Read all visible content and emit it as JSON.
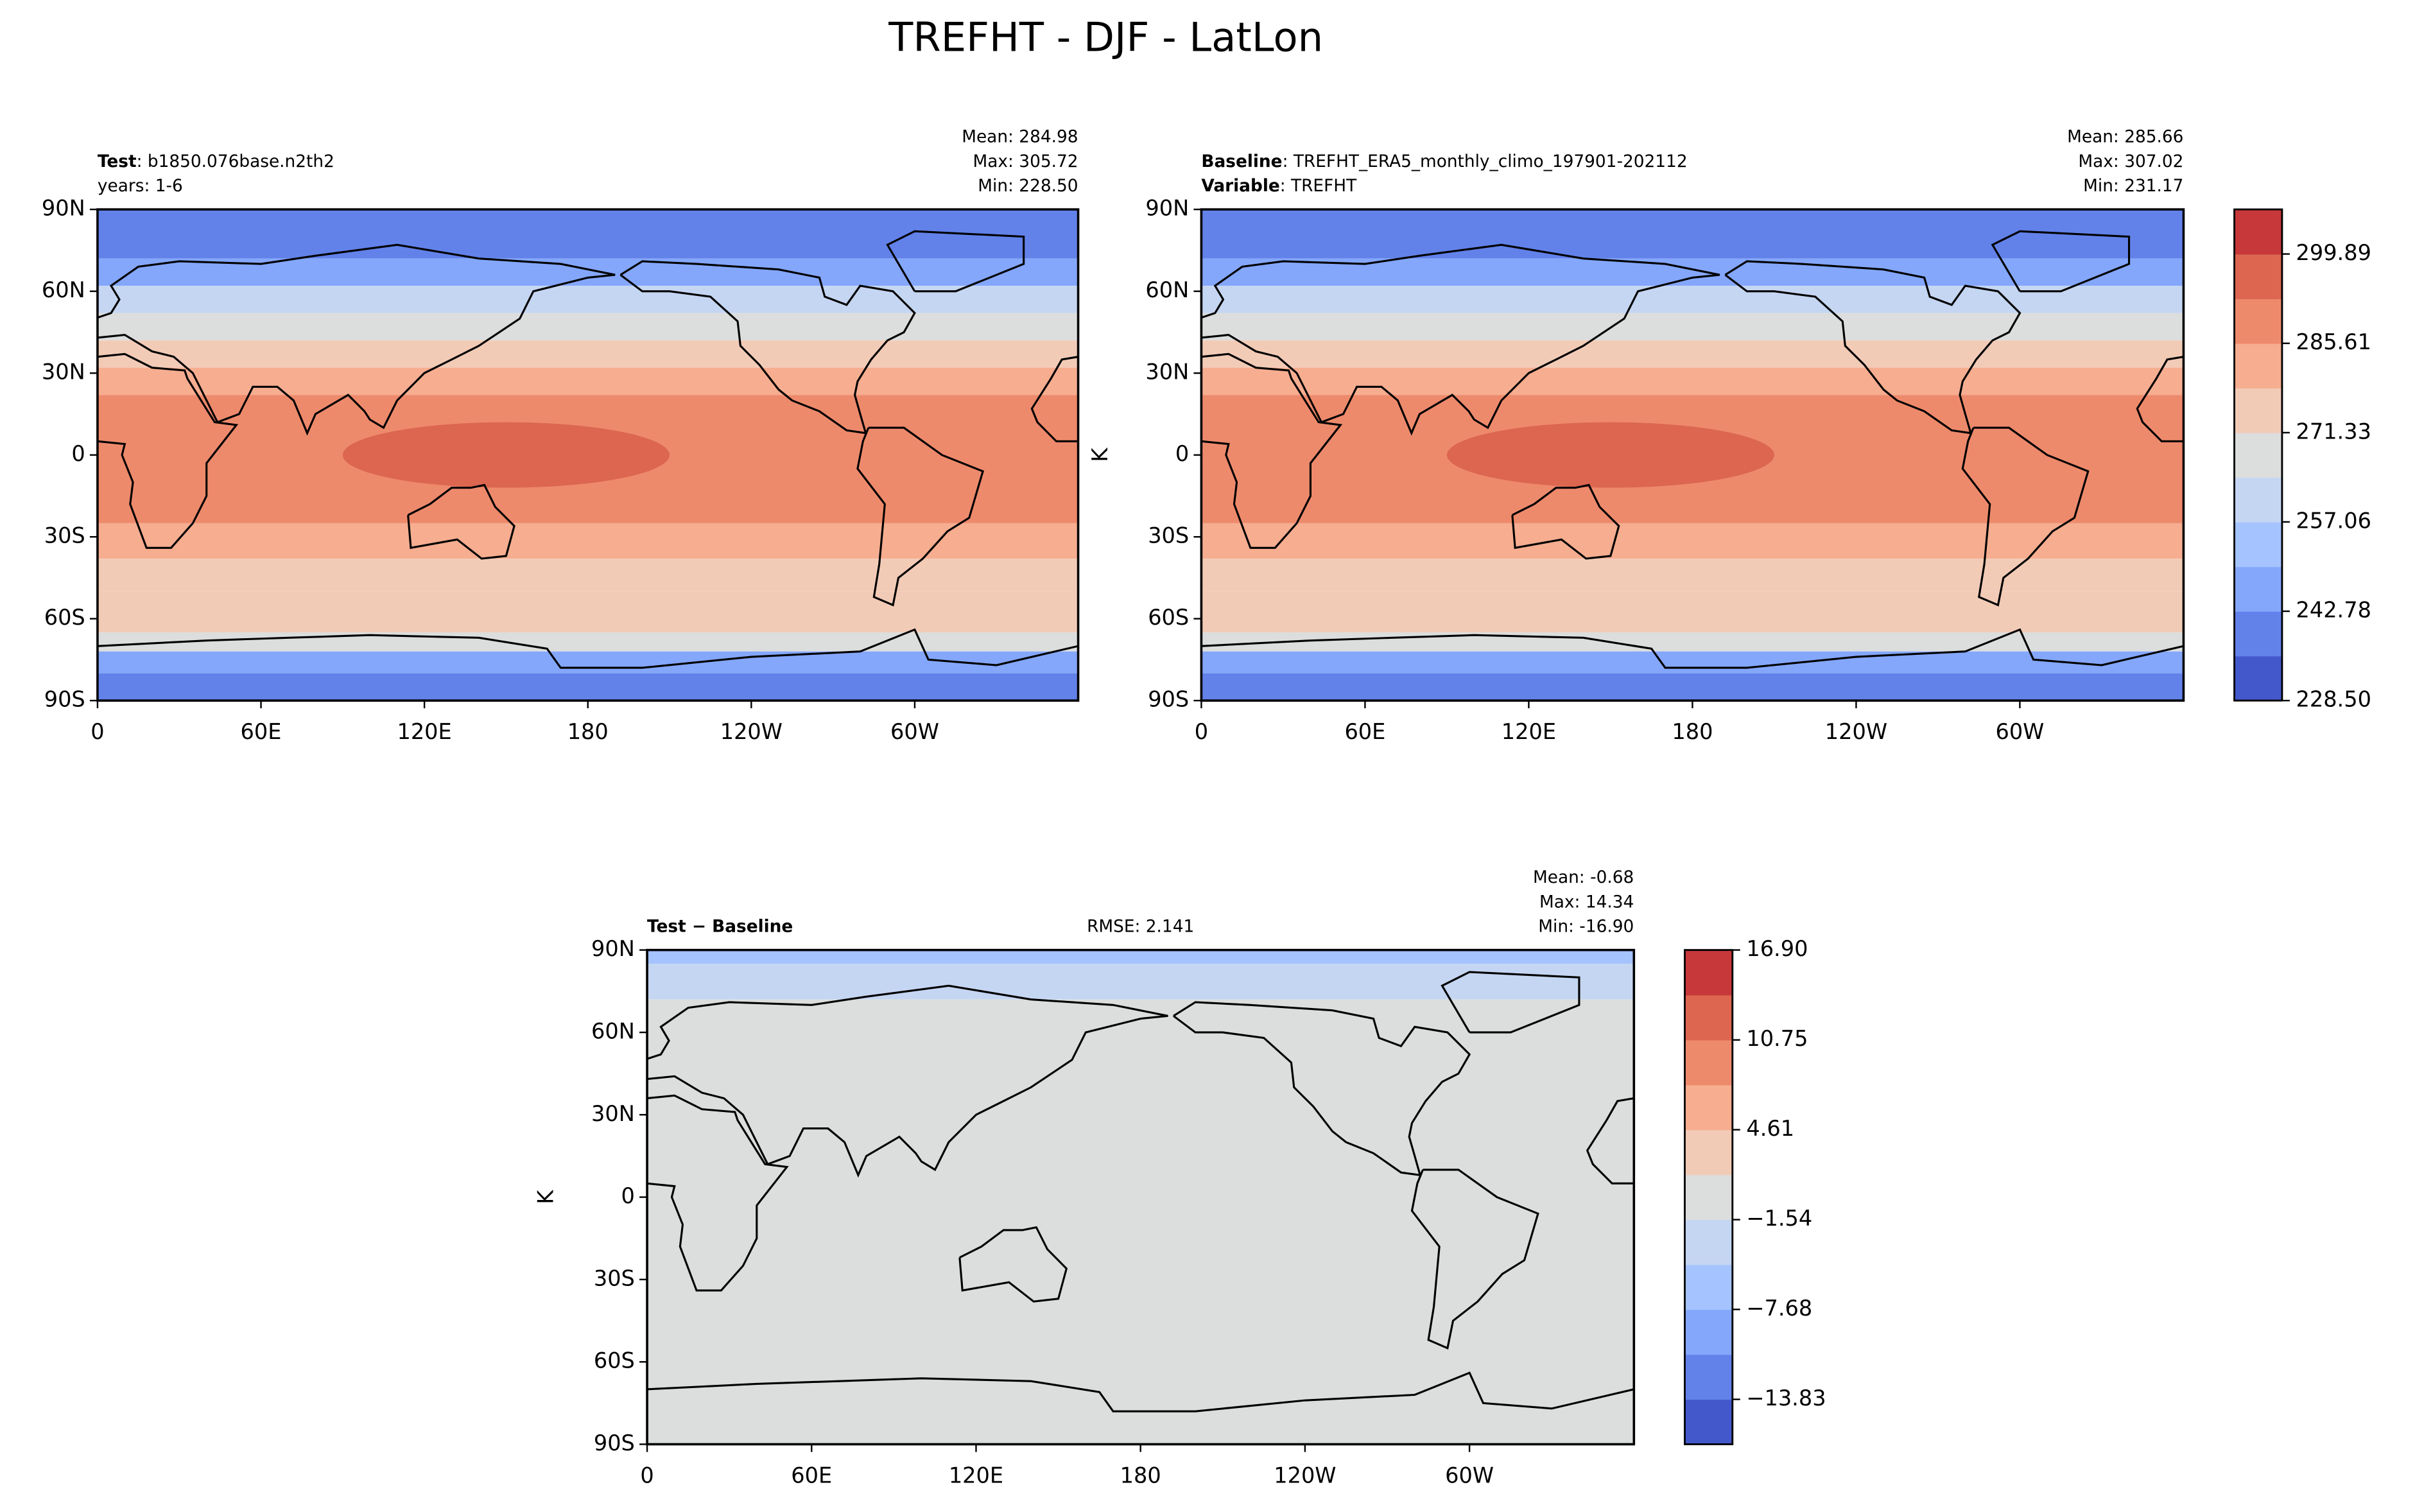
{
  "title": "TREFHT - DJF - LatLon",
  "chart_data": [
    {
      "type": "contour",
      "left_lines": [
        {
          "bold": "Test",
          "text": ": b1850.076base.n2th2"
        },
        {
          "text": "years: 1-6"
        }
      ],
      "stats": {
        "names": [
          "Mean:",
          "Max:",
          "Min:"
        ],
        "values": [
          284.98,
          305.72,
          228.5
        ],
        "value_labels": [
          "284.98",
          "305.72",
          "228.50"
        ]
      },
      "xlim": [
        0,
        360
      ],
      "xticks": [
        0,
        {
          "value": 60,
          "label": "60E"
        },
        {
          "value": 120,
          "label": "120E"
        },
        180,
        {
          "value": 240,
          "label": "120W"
        },
        {
          "value": 300,
          "label": "60W"
        }
      ],
      "ylim": [
        -90,
        90
      ],
      "yticks": [
        {
          "value": -90,
          "label": "90S"
        },
        {
          "value": -60,
          "label": "60S"
        },
        {
          "value": -30,
          "label": "30S"
        },
        0,
        {
          "value": 30,
          "label": "30N"
        },
        {
          "value": 60,
          "label": "60N"
        },
        {
          "value": 90,
          "label": "90N"
        }
      ]
    },
    {
      "type": "contour",
      "left_lines": [
        {
          "bold": "Baseline",
          "text": ": TREFHT_ERA5_monthly_climo_197901-202112"
        },
        {
          "bold": "Variable",
          "text": ": TREFHT"
        }
      ],
      "stats": {
        "names": [
          "Mean:",
          "Max:",
          "Min:"
        ],
        "values": [
          285.66,
          307.02,
          231.17
        ]
      },
      "ylabel": "K",
      "xlim": [
        0,
        360
      ],
      "xticks": [
        0,
        {
          "value": 60,
          "label": "60E"
        },
        {
          "value": 120,
          "label": "120E"
        },
        180,
        {
          "value": 240,
          "label": "120W"
        },
        {
          "value": 300,
          "label": "60W"
        }
      ],
      "ylim": [
        -90,
        90
      ],
      "yticks": [
        {
          "value": -90,
          "label": "90S"
        },
        {
          "value": -60,
          "label": "60S"
        },
        {
          "value": -30,
          "label": "30S"
        },
        0,
        {
          "value": 30,
          "label": "30N"
        },
        {
          "value": 60,
          "label": "60N"
        },
        {
          "value": 90,
          "label": "90N"
        }
      ],
      "colorbar": {
        "clim": [
          228.5,
          307.02
        ],
        "ticks": [
          {
            "value": 228.5,
            "label": "228.50"
          },
          242.78,
          257.06,
          271.33,
          285.61,
          299.89
        ],
        "colors": [
          "#4358cb",
          "#6282ea",
          "#84a7fc",
          "#a5c3fe",
          "#c5d6f2",
          "#dcdddd",
          "#f2cbb7",
          "#f6ad90",
          "#ee8a6c",
          "#dc6650",
          "#c6383a"
        ]
      }
    },
    {
      "type": "contour",
      "left_lines": [
        {
          "bold": "Test − Baseline"
        }
      ],
      "rmse_name": "RMSE:",
      "rmse": 2.141,
      "stats": {
        "names": [
          "Mean:",
          "Max:",
          "Min:"
        ],
        "values": [
          -0.68,
          14.34,
          -16.9
        ],
        "value_labels": [
          "-0.68",
          "14.34",
          "-16.90"
        ]
      },
      "ylabel": "K",
      "xlim": [
        0,
        360
      ],
      "xticks": [
        0,
        {
          "value": 60,
          "label": "60E"
        },
        {
          "value": 120,
          "label": "120E"
        },
        180,
        {
          "value": 240,
          "label": "120W"
        },
        {
          "value": 300,
          "label": "60W"
        }
      ],
      "ylim": [
        -90,
        90
      ],
      "yticks": [
        {
          "value": -90,
          "label": "90S"
        },
        {
          "value": -60,
          "label": "60S"
        },
        {
          "value": -30,
          "label": "30S"
        },
        0,
        {
          "value": 30,
          "label": "30N"
        },
        {
          "value": 60,
          "label": "60N"
        },
        {
          "value": 90,
          "label": "90N"
        }
      ],
      "colorbar": {
        "clim": [
          -16.9,
          16.9
        ],
        "ticks": [
          {
            "value": -13.83,
            "label": "−13.83"
          },
          {
            "value": -7.68,
            "label": "−7.68"
          },
          {
            "value": -1.54,
            "label": "−1.54"
          },
          4.61,
          10.75,
          {
            "value": 16.9,
            "label": "16.90"
          }
        ],
        "colors": [
          "#4358cb",
          "#6282ea",
          "#84a7fc",
          "#a5c3fe",
          "#c5d6f2",
          "#dcdddd",
          "#f2cbb7",
          "#f6ad90",
          "#ee8a6c",
          "#dc6650",
          "#c6383a"
        ]
      }
    }
  ]
}
